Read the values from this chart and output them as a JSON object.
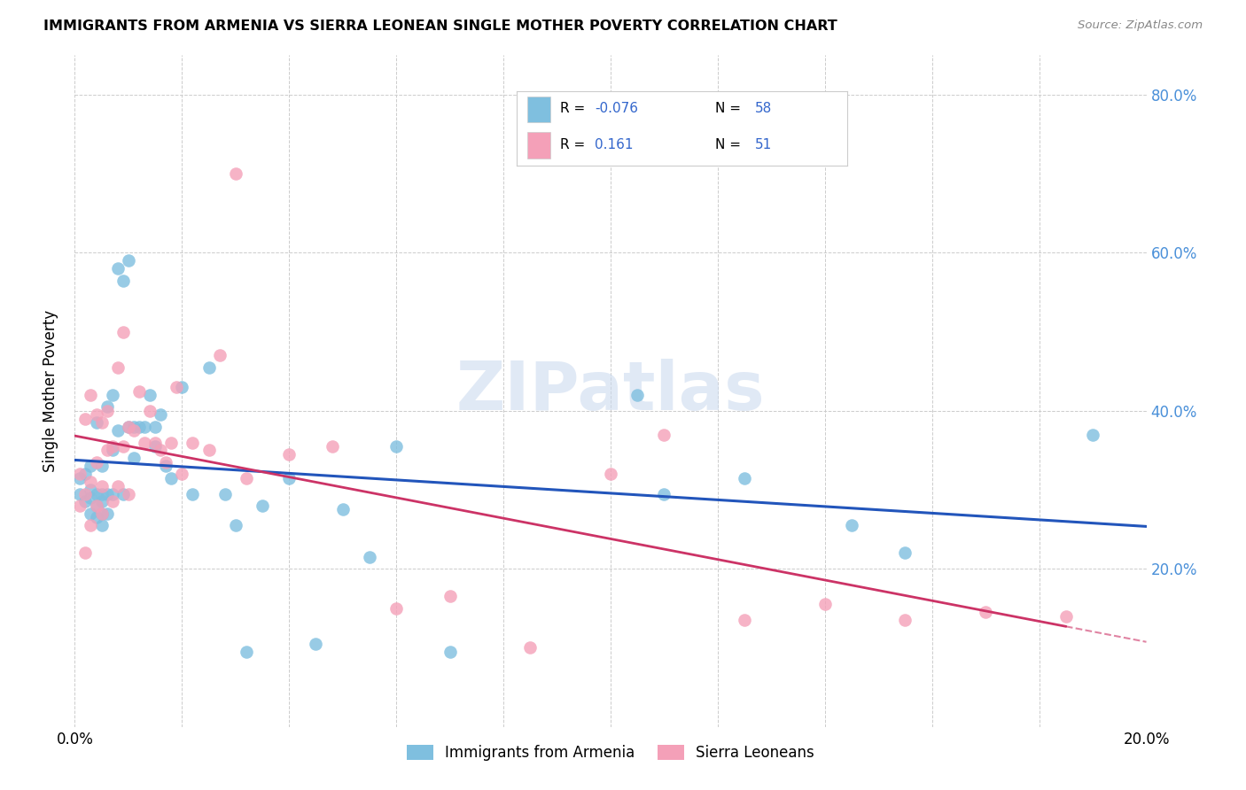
{
  "title": "IMMIGRANTS FROM ARMENIA VS SIERRA LEONEAN SINGLE MOTHER POVERTY CORRELATION CHART",
  "source": "Source: ZipAtlas.com",
  "ylabel": "Single Mother Poverty",
  "legend_label1": "Immigrants from Armenia",
  "legend_label2": "Sierra Leoneans",
  "R1": -0.076,
  "N1": 58,
  "R2": 0.161,
  "N2": 51,
  "xlim": [
    0.0,
    0.2
  ],
  "ylim": [
    0.0,
    0.85
  ],
  "color1": "#7fbfdf",
  "color2": "#f4a0b8",
  "line_color1": "#2255bb",
  "line_color2": "#cc3366",
  "watermark": "ZIPatlas",
  "armenia_x": [
    0.001,
    0.001,
    0.002,
    0.002,
    0.003,
    0.003,
    0.003,
    0.003,
    0.004,
    0.004,
    0.004,
    0.004,
    0.005,
    0.005,
    0.005,
    0.005,
    0.005,
    0.006,
    0.006,
    0.006,
    0.007,
    0.007,
    0.007,
    0.008,
    0.008,
    0.009,
    0.009,
    0.01,
    0.01,
    0.011,
    0.011,
    0.012,
    0.013,
    0.014,
    0.015,
    0.015,
    0.016,
    0.017,
    0.018,
    0.02,
    0.022,
    0.025,
    0.028,
    0.03,
    0.032,
    0.035,
    0.04,
    0.045,
    0.05,
    0.055,
    0.06,
    0.07,
    0.105,
    0.11,
    0.125,
    0.145,
    0.155,
    0.19
  ],
  "armenia_y": [
    0.295,
    0.315,
    0.285,
    0.32,
    0.27,
    0.29,
    0.3,
    0.33,
    0.265,
    0.28,
    0.295,
    0.385,
    0.255,
    0.27,
    0.285,
    0.295,
    0.33,
    0.27,
    0.295,
    0.405,
    0.295,
    0.35,
    0.42,
    0.375,
    0.58,
    0.295,
    0.565,
    0.38,
    0.59,
    0.38,
    0.34,
    0.38,
    0.38,
    0.42,
    0.38,
    0.355,
    0.395,
    0.33,
    0.315,
    0.43,
    0.295,
    0.455,
    0.295,
    0.255,
    0.095,
    0.28,
    0.315,
    0.105,
    0.275,
    0.215,
    0.355,
    0.095,
    0.42,
    0.295,
    0.315,
    0.255,
    0.22,
    0.37
  ],
  "sierra_x": [
    0.001,
    0.001,
    0.002,
    0.002,
    0.002,
    0.003,
    0.003,
    0.003,
    0.004,
    0.004,
    0.004,
    0.005,
    0.005,
    0.005,
    0.006,
    0.006,
    0.007,
    0.007,
    0.008,
    0.008,
    0.009,
    0.009,
    0.01,
    0.01,
    0.011,
    0.012,
    0.013,
    0.014,
    0.015,
    0.016,
    0.017,
    0.018,
    0.019,
    0.02,
    0.022,
    0.025,
    0.027,
    0.03,
    0.032,
    0.04,
    0.048,
    0.06,
    0.07,
    0.085,
    0.1,
    0.11,
    0.125,
    0.14,
    0.155,
    0.17,
    0.185
  ],
  "sierra_y": [
    0.28,
    0.32,
    0.22,
    0.295,
    0.39,
    0.255,
    0.31,
    0.42,
    0.28,
    0.335,
    0.395,
    0.27,
    0.305,
    0.385,
    0.35,
    0.4,
    0.285,
    0.355,
    0.305,
    0.455,
    0.355,
    0.5,
    0.295,
    0.38,
    0.375,
    0.425,
    0.36,
    0.4,
    0.36,
    0.35,
    0.335,
    0.36,
    0.43,
    0.32,
    0.36,
    0.35,
    0.47,
    0.7,
    0.315,
    0.345,
    0.355,
    0.15,
    0.165,
    0.1,
    0.32,
    0.37,
    0.135,
    0.155,
    0.135,
    0.145,
    0.14
  ]
}
